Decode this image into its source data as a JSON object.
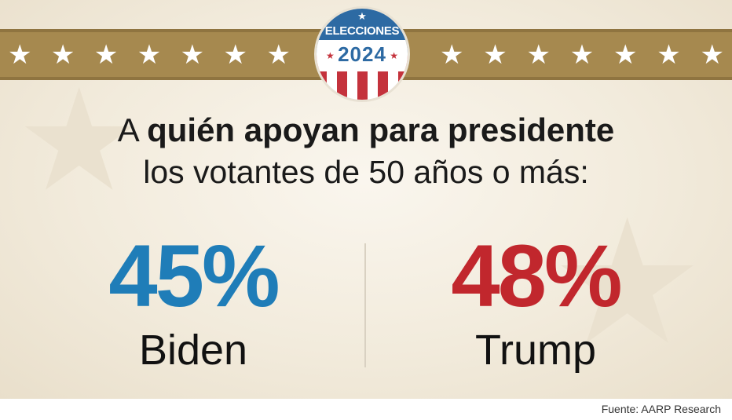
{
  "badge": {
    "title": "ELECCIONES",
    "year": "2024"
  },
  "banner": {
    "star_icon": "white-star-icon"
  },
  "headline": {
    "line1_regular": "A",
    "line1_bold": "quién apoyan para presidente",
    "line2": "los votantes de 50 años o más:"
  },
  "results": [
    {
      "percent": "45%",
      "candidate": "Biden",
      "color": "#1f7db8"
    },
    {
      "percent": "48%",
      "candidate": "Trump",
      "color": "#c1272d"
    }
  ],
  "source": "Fuente: AARP Research",
  "colors": {
    "banner": "#a6894f",
    "badge_blue": "#2d6aa3",
    "badge_red": "#c4323c",
    "background": "#f2ebdc"
  }
}
